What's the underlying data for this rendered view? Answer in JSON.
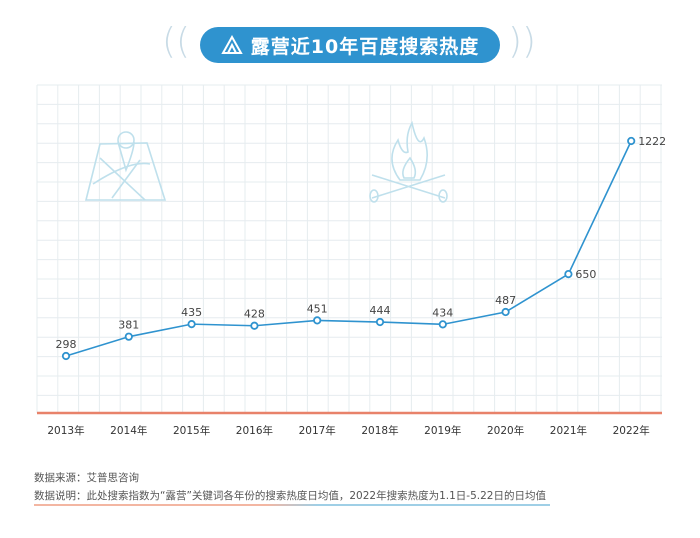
{
  "title": "露营近10年百度搜索热度",
  "title_icon": "tent-icon",
  "decor_icons": [
    "map-pin-icon",
    "campfire-icon"
  ],
  "colors": {
    "line": "#2f93cf",
    "baseline": "#e8826a",
    "grid": "#e6ecef",
    "icons": "#bfe0ec"
  },
  "chart_data": {
    "type": "line",
    "categories": [
      "2013年",
      "2014年",
      "2015年",
      "2016年",
      "2017年",
      "2018年",
      "2019年",
      "2020年",
      "2021年",
      "2022年"
    ],
    "values": [
      298,
      381,
      435,
      428,
      451,
      444,
      434,
      487,
      650,
      1222
    ],
    "data_labels": [
      "298",
      "381",
      "435",
      "428",
      "451",
      "444",
      "434",
      "487",
      "650",
      "1222"
    ],
    "grid": true
  },
  "notes": {
    "source": "数据来源：艾普思咨询",
    "desc": "数据说明：此处搜索指数为“露营”关键词各年份的搜索热度日均值，2022年搜索热度为1.1日-5.22日的日均值"
  }
}
